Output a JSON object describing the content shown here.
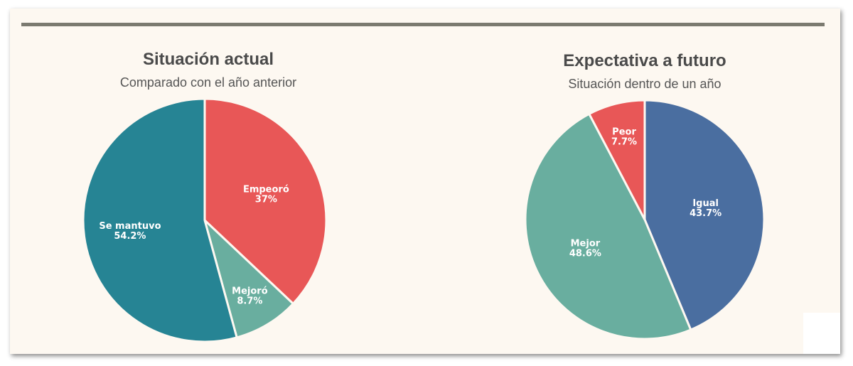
{
  "chart_data": [
    {
      "type": "pie",
      "title": "Situación actual",
      "subtitle": "Comparado con el año anterior",
      "slices": [
        {
          "label": "Empeoró",
          "value": 37,
          "display": "37%",
          "color": "#e85757"
        },
        {
          "label": "Mejoró",
          "value": 8.7,
          "display": "8.7%",
          "color": "#69ae9f"
        },
        {
          "label": "Se mantuvo",
          "value": 54.2,
          "display": "54.2%",
          "color": "#268494"
        }
      ]
    },
    {
      "type": "pie",
      "title": "Expectativa a futuro",
      "subtitle": "Situación dentro de un año",
      "slices": [
        {
          "label": "Igual",
          "value": 43.7,
          "display": "43.7%",
          "color": "#4a6ea0"
        },
        {
          "label": "Mejor",
          "value": 48.6,
          "display": "48.6%",
          "color": "#69ae9f"
        },
        {
          "label": "Peor",
          "value": 7.7,
          "display": "7.7%",
          "color": "#e85757"
        }
      ]
    }
  ]
}
